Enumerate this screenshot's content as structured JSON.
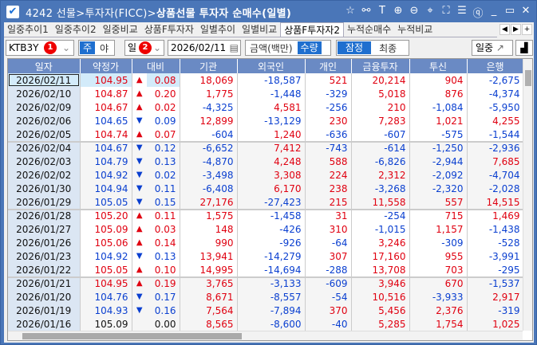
{
  "window": {
    "code": "4242",
    "path": "선물>투자자(FICC)>",
    "title": "상품선물 투자자 순매수(일별)"
  },
  "tabs": [
    {
      "label": "일중추이1"
    },
    {
      "label": "일중추이2"
    },
    {
      "label": "일중비교"
    },
    {
      "label": "상품F투자자"
    },
    {
      "label": "일별추이"
    },
    {
      "label": "일별비교"
    },
    {
      "label": "상품F투자자2",
      "active": true
    },
    {
      "label": "누적순매수"
    },
    {
      "label": "누적비교"
    }
  ],
  "toolbar": {
    "instrument": "KTB3Y",
    "session_day": "주",
    "session_night": "야",
    "period": "일",
    "date": "2026/02/11",
    "amount": "금액(백만)",
    "quantity": "수량",
    "prelim": "잠정",
    "final": "최종",
    "intraday": "일중",
    "badge1": "1",
    "badge2": "2"
  },
  "colors": {
    "up": "#e00010",
    "down": "#0a3fd0",
    "header": "#6a8ac4",
    "title_bar": "#4a76b8"
  },
  "columns": [
    "일자",
    "약정가",
    "대비",
    "기관",
    "외국인",
    "개인",
    "금융투자",
    "투신",
    "은행"
  ],
  "rows": [
    [
      "2026/02/11",
      "104.95",
      "up",
      "0.08",
      "18,069",
      "-18,587",
      "521",
      "20,214",
      "904",
      "-2,675"
    ],
    [
      "2026/02/10",
      "104.87",
      "up",
      "0.20",
      "1,775",
      "-1,448",
      "-329",
      "5,018",
      "876",
      "-4,374"
    ],
    [
      "2026/02/09",
      "104.67",
      "up",
      "0.02",
      "-4,325",
      "4,581",
      "-256",
      "210",
      "-1,084",
      "-5,950"
    ],
    [
      "2026/02/06",
      "104.65",
      "down",
      "0.09",
      "12,899",
      "-13,129",
      "230",
      "7,283",
      "1,021",
      "4,255"
    ],
    [
      "2026/02/05",
      "104.74",
      "up",
      "0.07",
      "-604",
      "1,240",
      "-636",
      "-607",
      "-575",
      "-1,544"
    ],
    [
      "2026/02/04",
      "104.67",
      "down",
      "0.12",
      "-6,652",
      "7,412",
      "-743",
      "-614",
      "-1,250",
      "-2,936"
    ],
    [
      "2026/02/03",
      "104.79",
      "down",
      "0.13",
      "-4,870",
      "4,248",
      "588",
      "-6,826",
      "-2,944",
      "7,685"
    ],
    [
      "2026/02/02",
      "104.92",
      "down",
      "0.02",
      "-3,498",
      "3,308",
      "224",
      "2,312",
      "-2,092",
      "-4,704"
    ],
    [
      "2026/01/30",
      "104.94",
      "down",
      "0.11",
      "-6,408",
      "6,170",
      "238",
      "-3,268",
      "-2,320",
      "-2,028"
    ],
    [
      "2026/01/29",
      "105.05",
      "down",
      "0.15",
      "27,176",
      "-27,423",
      "215",
      "11,558",
      "557",
      "14,515"
    ],
    [
      "2026/01/28",
      "105.20",
      "up",
      "0.11",
      "1,575",
      "-1,458",
      "31",
      "-254",
      "715",
      "1,469"
    ],
    [
      "2026/01/27",
      "105.09",
      "up",
      "0.03",
      "148",
      "-426",
      "310",
      "-1,015",
      "1,157",
      "-1,438"
    ],
    [
      "2026/01/26",
      "105.06",
      "up",
      "0.14",
      "990",
      "-926",
      "-64",
      "3,246",
      "-309",
      "-528"
    ],
    [
      "2026/01/23",
      "104.92",
      "down",
      "0.13",
      "13,941",
      "-14,279",
      "307",
      "17,160",
      "955",
      "-3,991"
    ],
    [
      "2026/01/22",
      "105.05",
      "up",
      "0.10",
      "14,995",
      "-14,694",
      "-288",
      "13,708",
      "703",
      "-295"
    ],
    [
      "2026/01/21",
      "104.95",
      "up",
      "0.19",
      "3,765",
      "-3,133",
      "-609",
      "3,946",
      "670",
      "-1,537"
    ],
    [
      "2026/01/20",
      "104.76",
      "down",
      "0.17",
      "8,671",
      "-8,557",
      "-54",
      "10,516",
      "-3,933",
      "2,917"
    ],
    [
      "2026/01/19",
      "104.93",
      "down",
      "0.16",
      "7,564",
      "-7,894",
      "370",
      "5,456",
      "2,376",
      "-319"
    ],
    [
      "2026/01/16",
      "105.09",
      "flat",
      "0.00",
      "8,565",
      "-8,600",
      "-40",
      "5,285",
      "1,754",
      "1,025"
    ]
  ]
}
